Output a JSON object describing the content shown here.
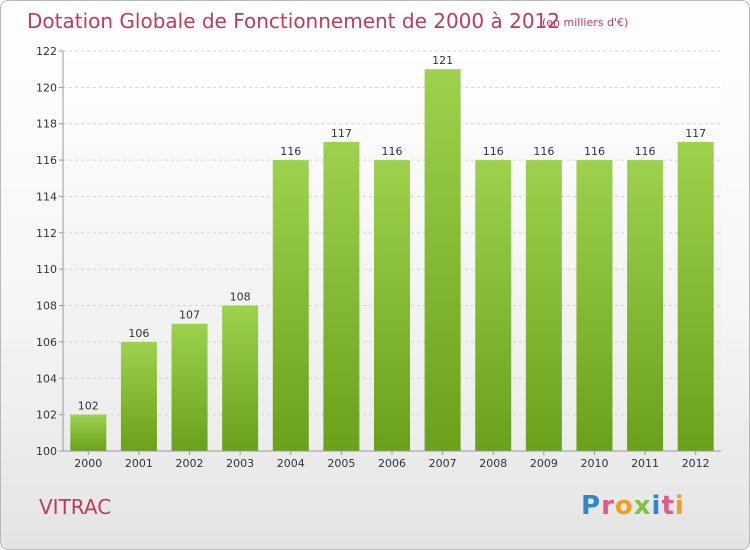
{
  "header": {
    "title": "Dotation Globale de Fonctionnement de 2000 à 2012",
    "unit": "(en milliers d'€)"
  },
  "commune": "VITRAC",
  "logo": {
    "letters": [
      {
        "char": "P",
        "color": "#2f86c8"
      },
      {
        "char": "r",
        "color": "#e25a8a"
      },
      {
        "char": "o",
        "color": "#f0a020"
      },
      {
        "char": "x",
        "color": "#7fc242"
      },
      {
        "char": "i",
        "color": "#2f86c8"
      },
      {
        "char": "t",
        "color": "#e25a8a"
      },
      {
        "char": "i",
        "color": "#f0a020"
      }
    ]
  },
  "colors": {
    "title": "#c03a5a",
    "bar_light": "#9ed24e",
    "bar_dark": "#6aa01a",
    "grid": "#d4d4d4",
    "axis": "#999999"
  },
  "chart_data": {
    "type": "bar",
    "title": "Dotation Globale de Fonctionnement de 2000 à 2012",
    "subtitle": "(en milliers d'€)",
    "categories": [
      "2000",
      "2001",
      "2002",
      "2003",
      "2004",
      "2005",
      "2006",
      "2007",
      "2008",
      "2009",
      "2010",
      "2011",
      "2012"
    ],
    "values": [
      102,
      106,
      107,
      108,
      116,
      117,
      116,
      121,
      116,
      116,
      116,
      116,
      117
    ],
    "ylim": [
      100,
      122
    ],
    "yticks": [
      100,
      102,
      104,
      106,
      108,
      110,
      112,
      114,
      116,
      118,
      120,
      122
    ],
    "grid": true,
    "data_labels": true
  }
}
